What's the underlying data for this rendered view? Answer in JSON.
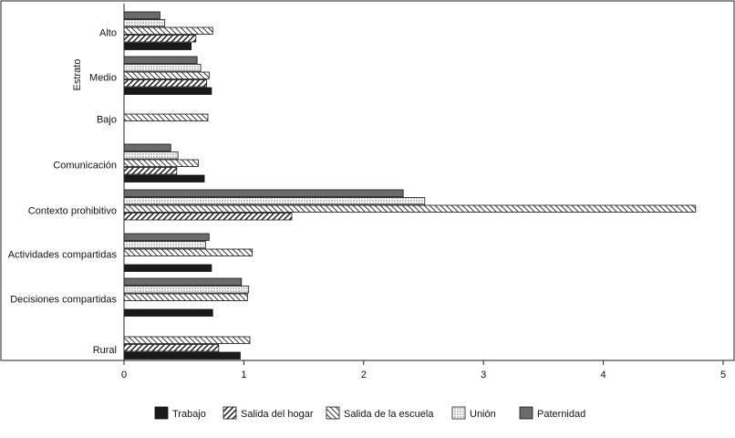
{
  "chart_data": {
    "type": "bar",
    "orientation": "horizontal",
    "ylabel": "Estrato",
    "xlim": [
      0,
      5
    ],
    "x_ticks": [
      "0",
      "1",
      "2",
      "3",
      "4",
      "5"
    ],
    "grid": false,
    "legend_position": "bottom",
    "categories": [
      "Alto",
      "Medio",
      "Bajo",
      "Comunicación",
      "Contexto prohibitivo",
      "Actividades compartidas",
      "Decisiones compartidas",
      "Rural"
    ],
    "series": [
      {
        "name": "Paternidad",
        "fill": "solid-gray",
        "color": "#6b6b6b",
        "values": [
          0.3,
          0.61,
          null,
          0.39,
          2.33,
          0.71,
          0.98,
          null
        ]
      },
      {
        "name": "Unión",
        "fill": "dots",
        "color": "#ffffff",
        "values": [
          0.34,
          0.64,
          null,
          0.45,
          2.51,
          0.68,
          1.04,
          null
        ]
      },
      {
        "name": "Salida de la escuela",
        "fill": "back-diagonal",
        "color": "#ffffff",
        "values": [
          0.74,
          0.71,
          0.7,
          0.62,
          4.77,
          1.07,
          1.03,
          1.05
        ]
      },
      {
        "name": "Salida del hogar",
        "fill": "forward-diagonal",
        "color": "#ffffff",
        "values": [
          0.6,
          0.69,
          null,
          0.44,
          1.4,
          null,
          null,
          0.79
        ]
      },
      {
        "name": "Trabajo",
        "fill": "solid-black",
        "color": "#1a1a1a",
        "values": [
          0.56,
          0.73,
          null,
          0.67,
          null,
          0.73,
          0.74,
          0.97
        ]
      }
    ],
    "legend_order": [
      "Trabajo",
      "Salida del hogar",
      "Salida de la escuela",
      "Unión",
      "Paternidad"
    ]
  }
}
